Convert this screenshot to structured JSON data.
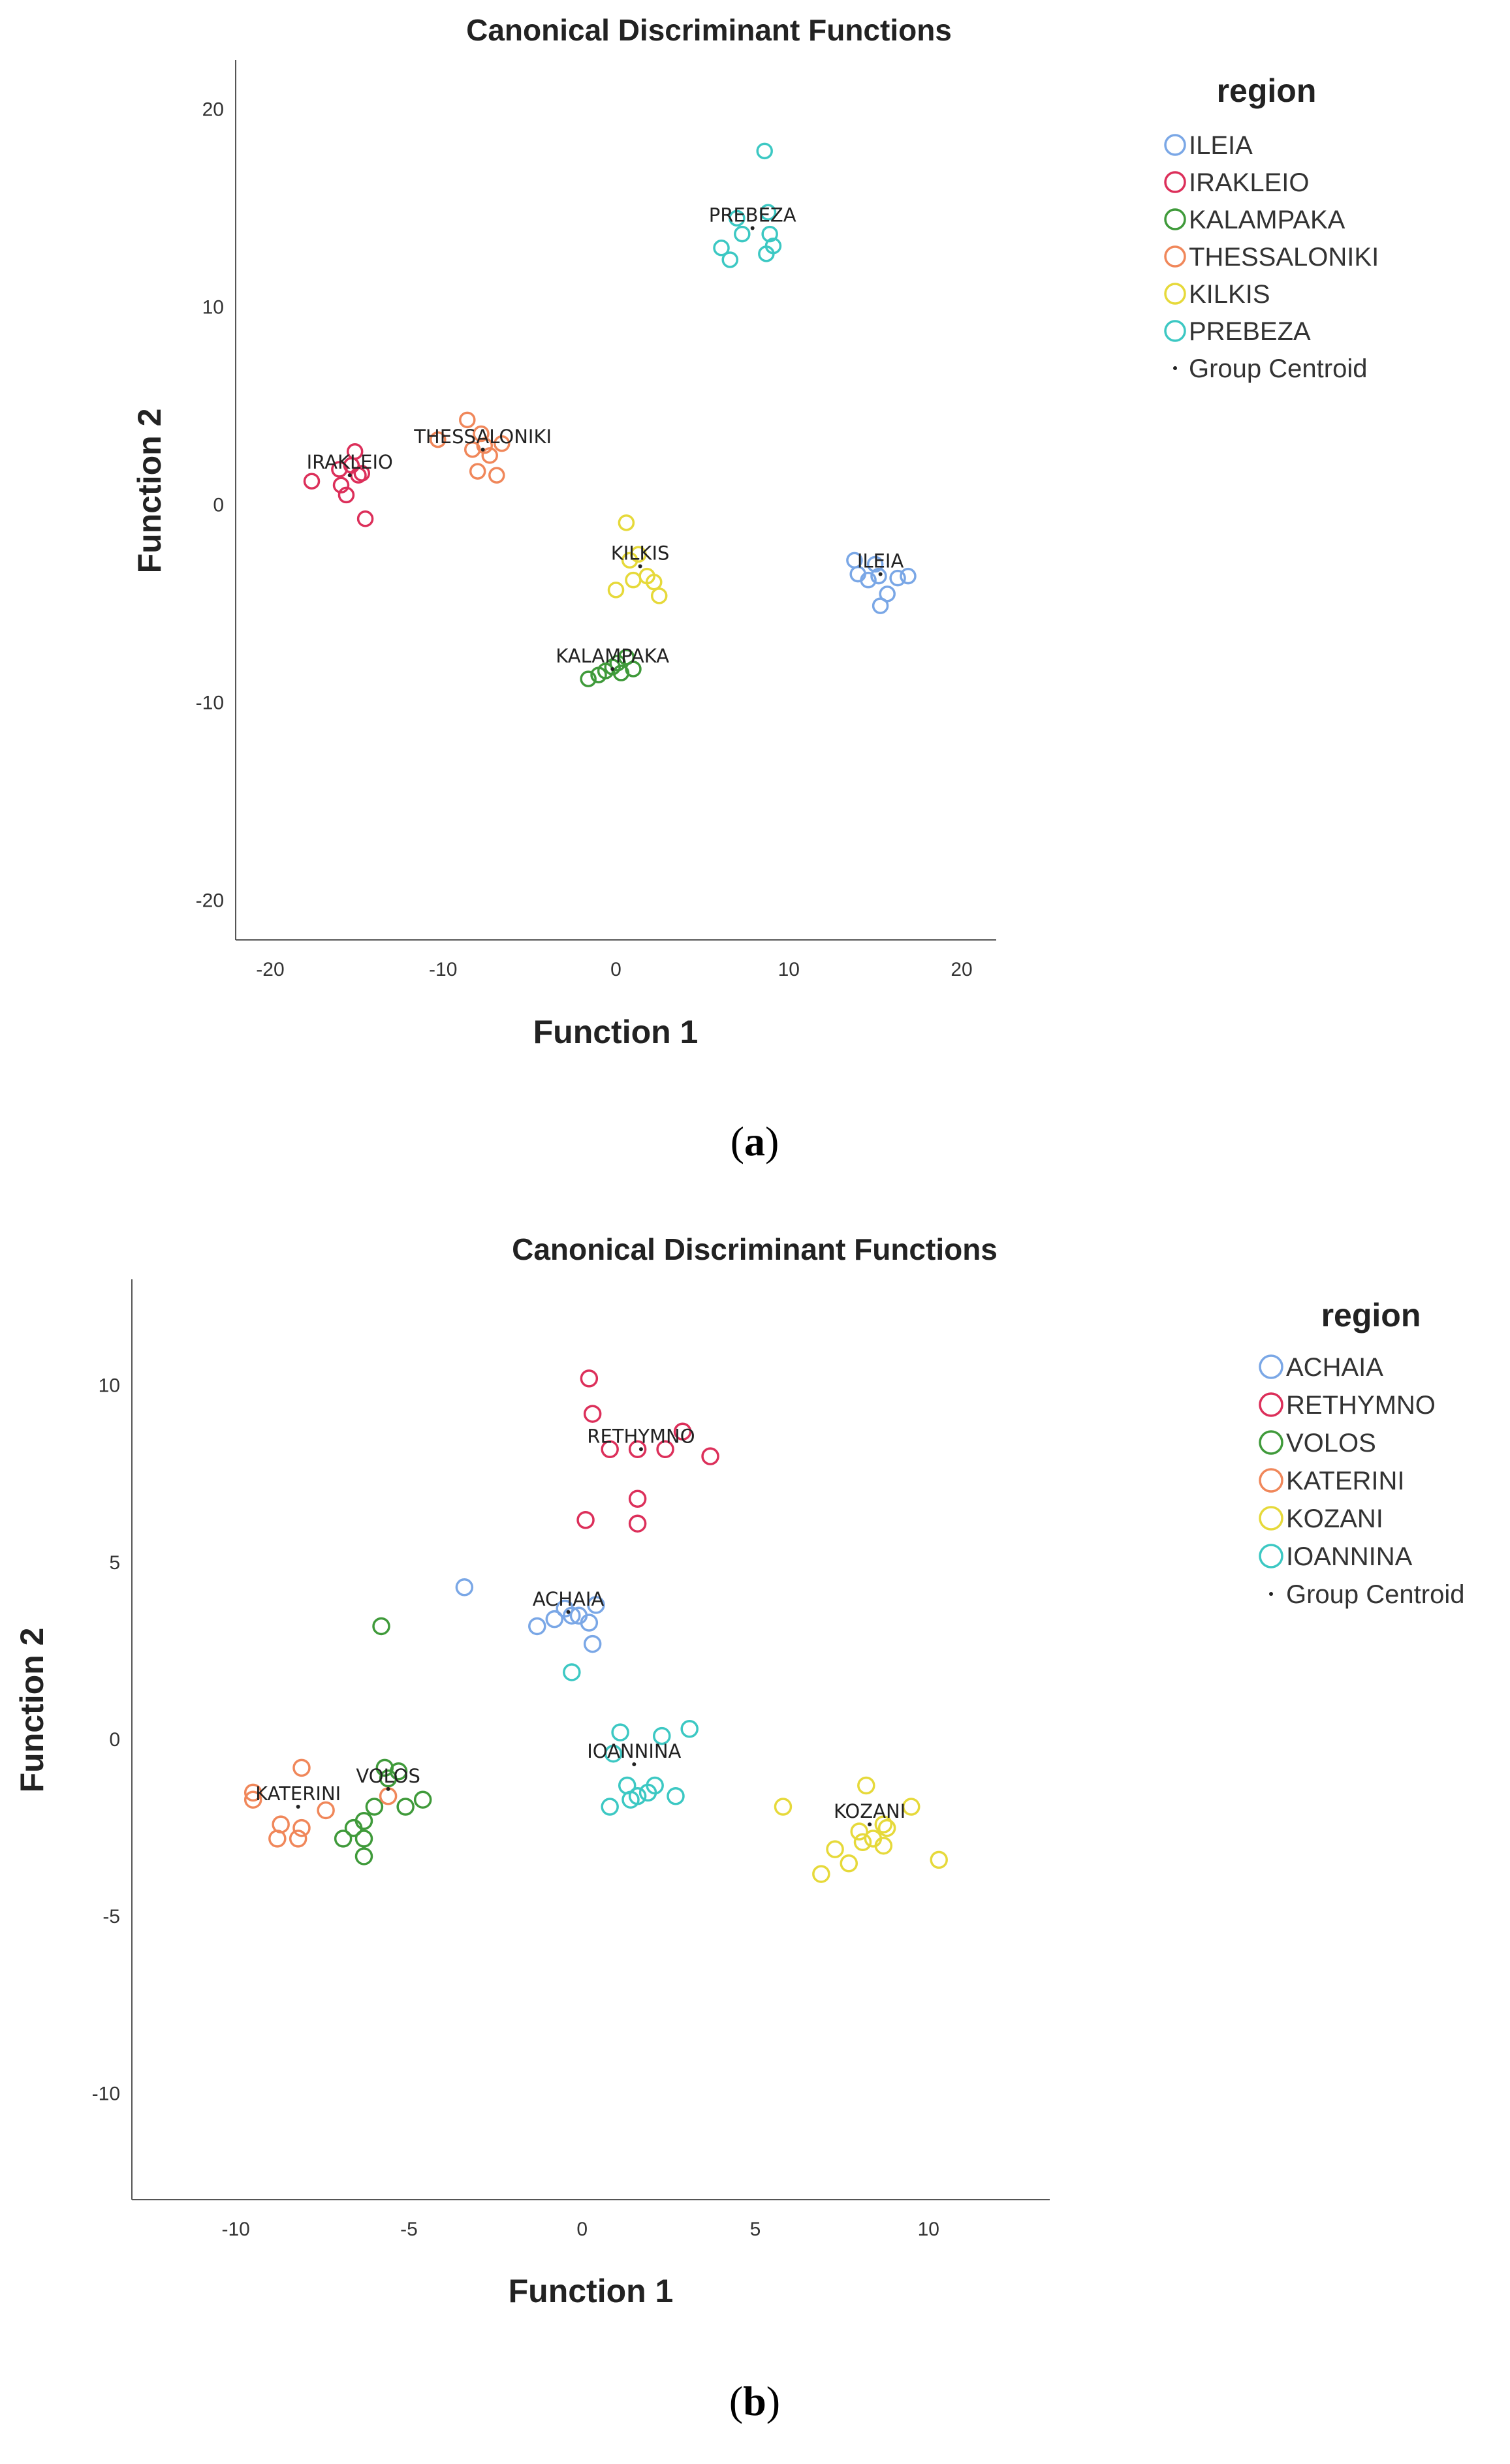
{
  "panels": [
    {
      "label_open": "(",
      "label_letter": "a",
      "label_close": ")"
    },
    {
      "label_open": "(",
      "label_letter": "b",
      "label_close": ")"
    }
  ],
  "chart_data": [
    {
      "type": "scatter",
      "title": "Canonical Discriminant Functions",
      "xlabel": "Function 1",
      "ylabel": "Function 2",
      "xlim": [
        -22,
        22
      ],
      "ylim": [
        -22,
        22.5
      ],
      "xticks": [
        -20,
        -10,
        0,
        10,
        20
      ],
      "yticks": [
        -20,
        -10,
        0,
        10,
        20
      ],
      "grid": false,
      "legend": {
        "title": "region",
        "position": "right",
        "centroid_label": "Group Centroid"
      },
      "series": [
        {
          "name": "ILEIA",
          "color": "#7aa7e6",
          "points": [
            [
              13.8,
              -2.8
            ],
            [
              14.0,
              -3.5
            ],
            [
              14.6,
              -3.8
            ],
            [
              15.0,
              -3.0
            ],
            [
              15.3,
              -5.1
            ],
            [
              15.7,
              -4.5
            ],
            [
              16.3,
              -3.7
            ],
            [
              16.9,
              -3.6
            ],
            [
              15.2,
              -3.6
            ]
          ],
          "centroid": [
            15.3,
            -3.5
          ]
        },
        {
          "name": "IRAKLEIO",
          "color": "#dc2f5a",
          "points": [
            [
              -17.6,
              1.2
            ],
            [
              -16.0,
              1.8
            ],
            [
              -15.9,
              1.0
            ],
            [
              -15.6,
              0.5
            ],
            [
              -15.1,
              2.7
            ],
            [
              -14.9,
              1.5
            ],
            [
              -14.7,
              1.6
            ],
            [
              -14.5,
              -0.7
            ],
            [
              -15.3,
              2.0
            ]
          ],
          "centroid": [
            -15.4,
            1.5
          ]
        },
        {
          "name": "KALAMPAKA",
          "color": "#3f9a3a",
          "points": [
            [
              -1.6,
              -8.8
            ],
            [
              -1.0,
              -8.6
            ],
            [
              -0.6,
              -8.4
            ],
            [
              -0.2,
              -8.2
            ],
            [
              0.1,
              -8.0
            ],
            [
              0.6,
              -7.7
            ],
            [
              1.0,
              -8.3
            ],
            [
              0.3,
              -8.5
            ]
          ],
          "centroid": [
            -0.2,
            -8.3
          ]
        },
        {
          "name": "THESSALONIKI",
          "color": "#f0875a",
          "points": [
            [
              -10.3,
              3.3
            ],
            [
              -8.6,
              4.3
            ],
            [
              -8.3,
              2.8
            ],
            [
              -8.0,
              1.7
            ],
            [
              -7.8,
              3.6
            ],
            [
              -7.3,
              2.5
            ],
            [
              -6.9,
              1.5
            ],
            [
              -6.6,
              3.1
            ],
            [
              -7.6,
              3.0
            ]
          ],
          "centroid": [
            -7.7,
            2.8
          ]
        },
        {
          "name": "KILKIS",
          "color": "#e6d93a",
          "points": [
            [
              0.6,
              -0.9
            ],
            [
              0.8,
              -2.8
            ],
            [
              1.0,
              -3.8
            ],
            [
              0.0,
              -4.3
            ],
            [
              1.8,
              -3.6
            ],
            [
              2.2,
              -3.9
            ],
            [
              2.5,
              -4.6
            ],
            [
              1.3,
              -2.5
            ]
          ],
          "centroid": [
            1.4,
            -3.1
          ]
        },
        {
          "name": "PREBEZA",
          "color": "#3cc8c3",
          "points": [
            [
              8.6,
              17.9
            ],
            [
              7.0,
              14.5
            ],
            [
              7.3,
              13.7
            ],
            [
              8.8,
              14.8
            ],
            [
              8.9,
              13.7
            ],
            [
              9.1,
              13.1
            ],
            [
              8.7,
              12.7
            ],
            [
              6.1,
              13.0
            ],
            [
              6.6,
              12.4
            ]
          ],
          "centroid": [
            7.9,
            14.0
          ]
        }
      ]
    },
    {
      "type": "scatter",
      "title": "Canonical Discriminant Functions",
      "xlabel": "Function 1",
      "ylabel": "Function 2",
      "xlim": [
        -13,
        13.5
      ],
      "ylim": [
        -13,
        13
      ],
      "xticks": [
        -10,
        -5,
        0,
        5,
        10
      ],
      "yticks": [
        -10,
        -5,
        0,
        5,
        10
      ],
      "grid": false,
      "legend": {
        "title": "region",
        "position": "right",
        "centroid_label": "Group Centroid"
      },
      "series": [
        {
          "name": "ACHAIA",
          "color": "#7aa7e6",
          "points": [
            [
              -3.4,
              4.3
            ],
            [
              -1.3,
              3.2
            ],
            [
              -0.8,
              3.4
            ],
            [
              -0.5,
              3.7
            ],
            [
              -0.1,
              3.5
            ],
            [
              0.2,
              3.3
            ],
            [
              0.4,
              3.8
            ],
            [
              0.3,
              2.7
            ],
            [
              -0.3,
              3.5
            ]
          ],
          "centroid": [
            -0.4,
            3.6
          ]
        },
        {
          "name": "RETHYMNO",
          "color": "#dc2f5a",
          "points": [
            [
              0.2,
              10.2
            ],
            [
              0.3,
              9.2
            ],
            [
              0.8,
              8.2
            ],
            [
              1.6,
              8.2
            ],
            [
              2.4,
              8.2
            ],
            [
              2.9,
              8.7
            ],
            [
              3.7,
              8.0
            ],
            [
              0.1,
              6.2
            ],
            [
              1.6,
              6.8
            ],
            [
              1.6,
              6.1
            ]
          ],
          "centroid": [
            1.7,
            8.2
          ]
        },
        {
          "name": "VOLOS",
          "color": "#3f9a3a",
          "points": [
            [
              -5.8,
              3.2
            ],
            [
              -5.7,
              -0.8
            ],
            [
              -5.3,
              -0.9
            ],
            [
              -5.1,
              -1.9
            ],
            [
              -4.6,
              -1.7
            ],
            [
              -6.0,
              -1.9
            ],
            [
              -6.3,
              -2.3
            ],
            [
              -6.6,
              -2.5
            ],
            [
              -6.9,
              -2.8
            ],
            [
              -6.3,
              -2.8
            ],
            [
              -6.3,
              -3.3
            ],
            [
              -5.6,
              -1.1
            ]
          ],
          "centroid": [
            -5.6,
            -1.4
          ]
        },
        {
          "name": "KATERINI",
          "color": "#f0875a",
          "points": [
            [
              -9.5,
              -1.5
            ],
            [
              -9.5,
              -1.7
            ],
            [
              -8.7,
              -2.4
            ],
            [
              -8.8,
              -2.8
            ],
            [
              -8.1,
              -0.8
            ],
            [
              -8.1,
              -2.5
            ],
            [
              -8.2,
              -2.8
            ],
            [
              -7.4,
              -2.0
            ],
            [
              -5.6,
              -1.6
            ]
          ],
          "centroid": [
            -8.2,
            -1.9
          ]
        },
        {
          "name": "KOZANI",
          "color": "#e6d93a",
          "points": [
            [
              5.8,
              -1.9
            ],
            [
              6.9,
              -3.8
            ],
            [
              7.3,
              -3.1
            ],
            [
              7.7,
              -3.5
            ],
            [
              8.0,
              -2.6
            ],
            [
              8.1,
              -2.9
            ],
            [
              8.2,
              -1.3
            ],
            [
              8.4,
              -2.8
            ],
            [
              8.7,
              -2.4
            ],
            [
              8.8,
              -2.5
            ],
            [
              8.7,
              -3.0
            ],
            [
              9.5,
              -1.9
            ],
            [
              10.3,
              -3.4
            ]
          ],
          "centroid": [
            8.3,
            -2.4
          ]
        },
        {
          "name": "IOANNINA",
          "color": "#3cc8c3",
          "points": [
            [
              -0.3,
              1.9
            ],
            [
              0.9,
              -0.4
            ],
            [
              1.1,
              0.2
            ],
            [
              1.3,
              -1.3
            ],
            [
              1.4,
              -1.7
            ],
            [
              1.9,
              -1.5
            ],
            [
              2.1,
              -1.3
            ],
            [
              2.3,
              0.1
            ],
            [
              2.7,
              -1.6
            ],
            [
              3.1,
              0.3
            ],
            [
              0.8,
              -1.9
            ],
            [
              1.6,
              -1.6
            ]
          ],
          "centroid": [
            1.5,
            -0.7
          ]
        }
      ]
    }
  ]
}
